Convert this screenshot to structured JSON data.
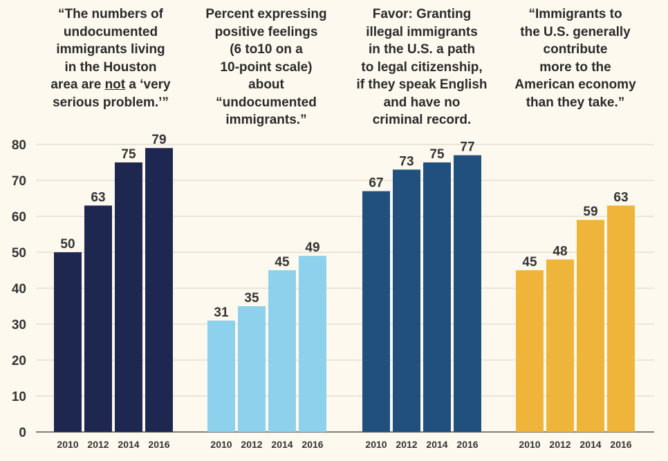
{
  "chart_data": {
    "type": "bar",
    "ylim": [
      0,
      80
    ],
    "yticks": [
      0,
      10,
      20,
      30,
      40,
      50,
      60,
      70,
      80
    ],
    "grid": true,
    "background": "#fdf9ef",
    "grid_color": "#d8d2c3",
    "panels": [
      {
        "title": "“The numbers of\nundocumented\nimmigrants living\nin the Houston\narea are not a ‘very\nserious problem.’”",
        "color": "#1e2750",
        "categories": [
          "2010",
          "2012",
          "2014",
          "2016"
        ],
        "values": [
          50,
          63,
          75,
          79
        ]
      },
      {
        "title": "Percent expressing\npositive feelings\n(6 to10 on a\n10-point scale)\nabout\n“undocumented\nimmigrants.”",
        "color": "#8dd1ec",
        "categories": [
          "2010",
          "2012",
          "2014",
          "2016"
        ],
        "values": [
          31,
          35,
          45,
          49
        ]
      },
      {
        "title": "Favor: Granting\nillegal immigrants\nin the U.S. a path\nto legal citizenship,\nif they speak English\nand have no\ncriminal record.",
        "color": "#21507f",
        "categories": [
          "2010",
          "2012",
          "2014",
          "2016"
        ],
        "values": [
          67,
          73,
          75,
          77
        ]
      },
      {
        "title": "“Immigrants to\nthe U.S. generally\ncontribute\nmore to the\nAmerican economy\nthan they take.”",
        "color": "#efb43a",
        "categories": [
          "2010",
          "2012",
          "2014",
          "2016"
        ],
        "values": [
          45,
          48,
          59,
          63
        ]
      }
    ]
  }
}
